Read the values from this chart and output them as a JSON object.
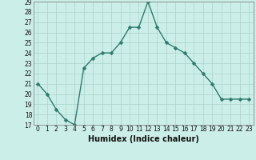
{
  "x": [
    0,
    1,
    2,
    3,
    4,
    5,
    6,
    7,
    8,
    9,
    10,
    11,
    12,
    13,
    14,
    15,
    16,
    17,
    18,
    19,
    20,
    21,
    22,
    23
  ],
  "y": [
    21,
    20,
    18.5,
    17.5,
    17,
    22.5,
    23.5,
    24,
    24,
    25,
    26.5,
    26.5,
    29,
    26.5,
    25,
    24.5,
    24,
    23,
    22,
    21,
    19.5,
    19.5,
    19.5,
    19.5
  ],
  "xlabel": "Humidex (Indice chaleur)",
  "ylim": [
    17,
    29
  ],
  "xlim": [
    -0.5,
    23.5
  ],
  "yticks": [
    17,
    18,
    19,
    20,
    21,
    22,
    23,
    24,
    25,
    26,
    27,
    28,
    29
  ],
  "xticks": [
    0,
    1,
    2,
    3,
    4,
    5,
    6,
    7,
    8,
    9,
    10,
    11,
    12,
    13,
    14,
    15,
    16,
    17,
    18,
    19,
    20,
    21,
    22,
    23
  ],
  "line_color": "#2d7a6e",
  "bg_color": "#cceee8",
  "grid_major_color": "#aad4cc",
  "grid_minor_color": "#bbddd8",
  "marker_size": 2.5,
  "line_width": 1.0,
  "tick_labelsize": 5.5,
  "xlabel_fontsize": 7
}
